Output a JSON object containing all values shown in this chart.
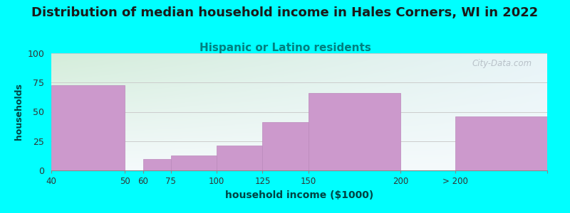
{
  "title": "Distribution of median household income in Hales Corners, WI in 2022",
  "subtitle": "Hispanic or Latino residents",
  "xlabel": "household income ($1000)",
  "ylabel": "households",
  "title_fontsize": 13,
  "subtitle_fontsize": 11,
  "xlabel_fontsize": 10,
  "ylabel_fontsize": 9,
  "title_color": "#1a1a1a",
  "subtitle_color": "#008080",
  "xlabel_color": "#004444",
  "ylabel_color": "#004444",
  "bg_outer": "#00ffff",
  "bar_color": "#cc99cc",
  "bar_edge_color": "#bb88bb",
  "ylim": [
    0,
    100
  ],
  "yticks": [
    0,
    25,
    50,
    75,
    100
  ],
  "watermark": "City-Data.com",
  "grid_color": "#cccccc",
  "plot_bg_top_left": "#d4edda",
  "plot_bg_top_right": "#e8f4f8",
  "plot_bg_bottom": "#f5fafc",
  "bar_left_edges": [
    10,
    50,
    60,
    75,
    100,
    125,
    150,
    200,
    230
  ],
  "bar_right_edges": [
    50,
    60,
    75,
    100,
    125,
    150,
    200,
    230,
    280
  ],
  "bar_heights": [
    73,
    0,
    10,
    13,
    21,
    41,
    66,
    0,
    46
  ],
  "xtick_positions": [
    10,
    50,
    60,
    75,
    100,
    125,
    150,
    200,
    230,
    280
  ],
  "xtick_labels": [
    "40",
    "50",
    "60",
    "75",
    "100",
    "125",
    "150",
    "200",
    "> 200",
    ""
  ],
  "xmin": 10,
  "xmax": 280
}
